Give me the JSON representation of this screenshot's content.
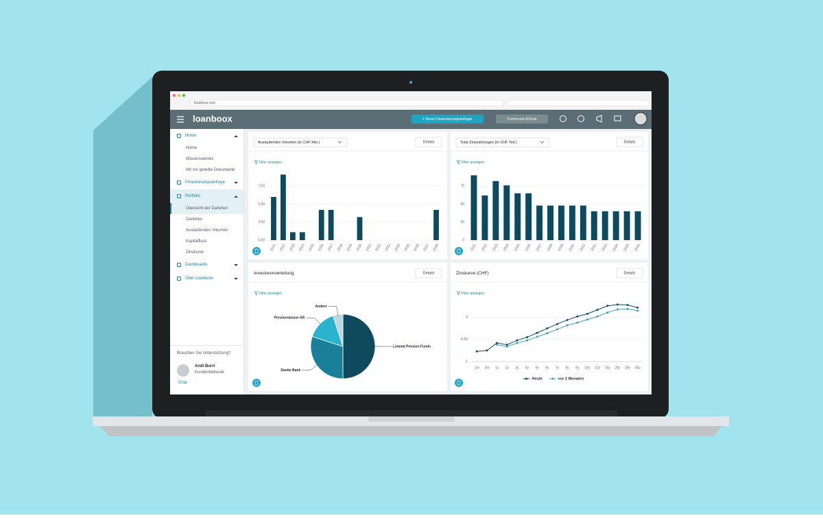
{
  "browser": {
    "url": "loanboox.com"
  },
  "header": {
    "logo": "loanboox",
    "new_request": "+ Neue Finanzierungsanfrage",
    "account": "Commune d'Uroa"
  },
  "sidebar": {
    "items": [
      {
        "label": "Home",
        "children": [
          "Home",
          "Wissenswertes",
          "Mit mir geteilte Dokumente"
        ]
      },
      {
        "label": "Finanzierungsanfrage"
      },
      {
        "label": "Portfolio",
        "children": [
          "Übersicht der Darlehen",
          "Darlehen",
          "Auslaufendes Volumen",
          "Kapitalfluss",
          "Zinskurve"
        ]
      },
      {
        "label": "Dashboards"
      },
      {
        "label": "Über Loanboox"
      }
    ],
    "support": {
      "question": "Brauchen Sie Unterstützung?",
      "name": "Andi Burri",
      "role": "Kundenbetreuer",
      "chat": "Chat"
    }
  },
  "chart_data": [
    {
      "type": "bar",
      "title": "Auslaufendes Volumen (in CHF Mio.)",
      "details": "Details",
      "filter": "Filter anzeigen",
      "categories": [
        "2021",
        "2022",
        "2023",
        "2024",
        "2025",
        "2026",
        "2027",
        "2028",
        "2029",
        "2030",
        "2031",
        "2032",
        "2033",
        "2034",
        "2035",
        "2036",
        "2037",
        "2038"
      ],
      "values": [
        6,
        9.1,
        1.1,
        1.1,
        0,
        4.2,
        4.2,
        0,
        0,
        3.2,
        0,
        0,
        0,
        0,
        0,
        0,
        0,
        4.2
      ],
      "color": "#0d4a5e",
      "ylim": [
        0,
        10
      ],
      "yticks": [
        {
          "value": 0,
          "label": "0.00"
        },
        {
          "value": 2.5,
          "label": "2.50"
        },
        {
          "value": 5,
          "label": "5.00"
        },
        {
          "value": 7.5,
          "label": "7.50"
        }
      ],
      "grid": true
    },
    {
      "type": "bar",
      "title": "Total Zinszahlungen (in CHF Tsd.)",
      "details": "Details",
      "filter": "Filter anzeigen",
      "categories": [
        "2021",
        "2022",
        "2023",
        "2024",
        "2025",
        "2026",
        "2027",
        "2028",
        "2029",
        "2030",
        "2031",
        "2032",
        "2033",
        "2034",
        "2035",
        "2036"
      ],
      "values": [
        90,
        62,
        82,
        76,
        65,
        65,
        48,
        48,
        48,
        48,
        48,
        40,
        40,
        40,
        40,
        40
      ],
      "color": "#0d4a5e",
      "ylim": [
        0,
        100
      ],
      "yticks": [
        0,
        25,
        50,
        75
      ],
      "grid": true
    },
    {
      "type": "pie",
      "title": "Investorenverteilung",
      "details": "Details",
      "filter": "Filter anzeigen",
      "categories": [
        "Limmat Pension Funds",
        "Zweite Bank",
        "Pensionskasse AR",
        "Andere"
      ],
      "values": [
        50,
        30,
        15,
        5
      ],
      "colors": [
        "#0d4a5e",
        "#1a7f99",
        "#2ab3cf",
        "#b9d8df"
      ]
    },
    {
      "type": "line",
      "title": "Zinskurve (CHF)",
      "details": "Details",
      "filter": "Filter anzeigen",
      "categories": [
        "1m",
        "3m",
        "1y",
        "2y",
        "3y",
        "4y",
        "5y",
        "6y",
        "7y",
        "8y",
        "9y",
        "10y",
        "12y",
        "15y",
        "20y",
        "25y",
        "30y"
      ],
      "series": [
        {
          "name": "Heute",
          "color": "#0d4a5e",
          "values": [
            -0.77,
            -0.75,
            -0.58,
            -0.62,
            -0.52,
            -0.45,
            -0.35,
            -0.25,
            -0.15,
            -0.06,
            0.02,
            0.08,
            0.17,
            0.26,
            0.29,
            0.28,
            0.22
          ]
        },
        {
          "name": "vor 2 Monaten",
          "color": "#3a9fb5",
          "values": [
            null,
            null,
            -0.62,
            -0.66,
            -0.58,
            -0.52,
            -0.44,
            -0.36,
            -0.27,
            -0.18,
            -0.12,
            -0.05,
            0.02,
            0.11,
            0.18,
            0.19,
            0.15
          ]
        }
      ],
      "ylim": [
        -1,
        0.35
      ],
      "yticks": [
        -1,
        {
          "value": -0.5,
          "label": "-0.50"
        },
        0
      ],
      "grid": true
    }
  ]
}
